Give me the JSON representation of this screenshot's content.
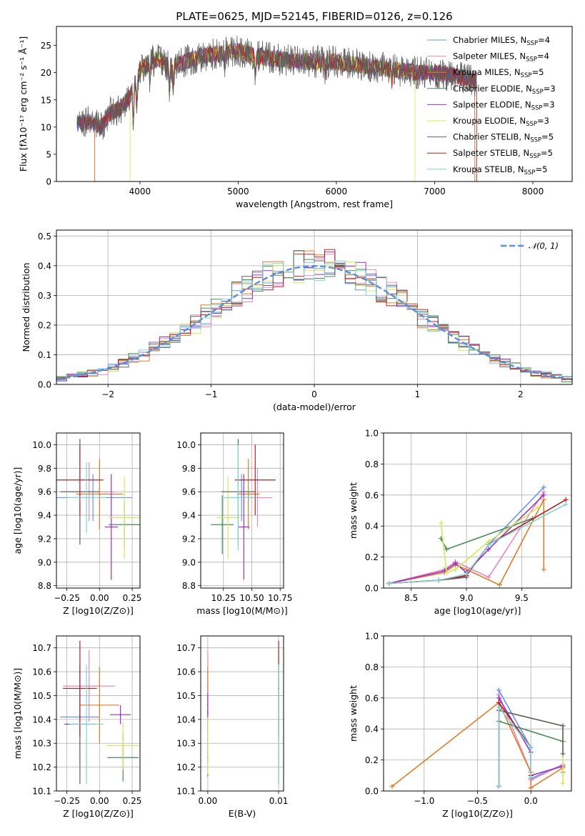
{
  "colors": {
    "chabrier_miles": "#6495ed",
    "salpeter_miles": "#e88aba",
    "kroupa_miles": "#e07b2a",
    "chabrier_elodie": "#4a8a5c",
    "salpeter_elodie": "#9a32c8",
    "kroupa_elodie": "#d4e85a",
    "chabrier_stelib": "#606060",
    "salpeter_stelib": "#b22222",
    "kroupa_stelib": "#7fd4d8",
    "normal": "#5b8dd9"
  },
  "chart_data": [
    {
      "id": "spectrum",
      "type": "line",
      "title": "PLATE=0625, MJD=52145, FIBERID=0126, z=0.126",
      "xlabel": "wavelength [Angstrom, rest frame]",
      "ylabel": "Flux [fλ10⁻¹⁷ erg cm⁻² s⁻¹ Å⁻¹]",
      "xlim": [
        3150,
        8400
      ],
      "ylim": [
        0,
        28.5
      ],
      "xticks": [
        4000,
        5000,
        6000,
        7000,
        8000
      ],
      "yticks": [
        0,
        5,
        10,
        15,
        20,
        25
      ],
      "legend_position": "top-right",
      "grid": false,
      "series": [
        {
          "name": "Chabrier MILES, N_SSP=4",
          "color_key": "chabrier_miles"
        },
        {
          "name": "Salpeter MILES, N_SSP=4",
          "color_key": "salpeter_miles"
        },
        {
          "name": "Kroupa MILES, N_SSP=5",
          "color_key": "kroupa_miles"
        },
        {
          "name": "Chabrier ELODIE, N_SSP=3",
          "color_key": "chabrier_elodie"
        },
        {
          "name": "Salpeter ELODIE, N_SSP=3",
          "color_key": "salpeter_elodie"
        },
        {
          "name": "Kroupa ELODIE, N_SSP=3",
          "color_key": "kroupa_elodie"
        },
        {
          "name": "Chabrier STELIB, N_SSP=5",
          "color_key": "chabrier_stelib"
        },
        {
          "name": "Salpeter STELIB, N_SSP=5",
          "color_key": "salpeter_stelib"
        },
        {
          "name": "Kroupa STELIB, N_SSP=5",
          "color_key": "kroupa_stelib"
        }
      ],
      "data_envelope": {
        "x": [
          3360,
          3500,
          3600,
          3700,
          3800,
          3900,
          4000,
          4100,
          4200,
          4300,
          4400,
          4600,
          4800,
          5000,
          5200,
          5400,
          5600,
          5800,
          6000,
          6200,
          6400,
          6600,
          6800,
          7000,
          7200,
          7300,
          7430
        ],
        "y": [
          10.5,
          11.0,
          10.0,
          12.5,
          13.5,
          15.5,
          20.5,
          22.0,
          22.5,
          21.0,
          21.5,
          23.0,
          23.5,
          24.0,
          23.0,
          22.5,
          22.0,
          22.0,
          22.0,
          21.5,
          21.0,
          20.5,
          20.0,
          20.0,
          19.5,
          19.0,
          18.5
        ]
      },
      "model_cutoffs": [
        {
          "series": "Chabrier MILES",
          "start": 3540,
          "end": 7410
        },
        {
          "series": "Salpeter MILES",
          "start": 3540,
          "end": 7410
        },
        {
          "series": "Kroupa MILES",
          "start": 3540,
          "end": 7410
        },
        {
          "series": "Kroupa ELODIE",
          "start": 3900,
          "end": 6800
        },
        {
          "series": "Salpeter STELIB",
          "start": 3360,
          "end": 7430
        }
      ]
    },
    {
      "id": "residuals",
      "type": "histogram",
      "xlabel": "(data-model)/error",
      "ylabel": "Normed distribution",
      "xlim": [
        -2.5,
        2.5
      ],
      "ylim": [
        0,
        0.52
      ],
      "xticks": [
        -2,
        -1,
        0,
        1,
        2
      ],
      "yticks": [
        0.0,
        0.1,
        0.2,
        0.3,
        0.4,
        0.5
      ],
      "grid": true,
      "legend_position": "top-right",
      "reference_curve": {
        "name": "𝒩(0, 1)",
        "mu": 0,
        "sigma": 1
      },
      "bin_width": 0.1
    },
    {
      "id": "age_vs_Z",
      "type": "errorbar",
      "xlabel": "Z [log10(Z/Z⊙)]",
      "ylabel": "age  [log10(age/yr)]",
      "xlim": [
        -0.33,
        0.31
      ],
      "ylim": [
        8.78,
        10.1
      ],
      "xticks": [
        -0.25,
        0.0,
        0.25
      ],
      "yticks": [
        8.8,
        9.0,
        9.2,
        9.4,
        9.6,
        9.8,
        10.0
      ],
      "grid": true,
      "points": [
        {
          "color_key": "chabrier_miles",
          "x": -0.05,
          "y": 9.55,
          "xerr": 0.3,
          "yerr": 0.2
        },
        {
          "color_key": "salpeter_miles",
          "x": -0.08,
          "y": 9.6,
          "xerr": 0.2,
          "yerr": 0.25
        },
        {
          "color_key": "kroupa_miles",
          "x": 0.0,
          "y": 9.58,
          "xerr": 0.18,
          "yerr": 0.3
        },
        {
          "color_key": "chabrier_elodie",
          "x": 0.19,
          "y": 9.32,
          "xerr": 0.12,
          "yerr": 0.2
        },
        {
          "color_key": "salpeter_elodie",
          "x": 0.09,
          "y": 9.3,
          "xerr": 0.05,
          "yerr": 0.45
        },
        {
          "color_key": "kroupa_elodie",
          "x": 0.19,
          "y": 9.38,
          "xerr": 0.12,
          "yerr": 0.35
        },
        {
          "color_key": "chabrier_stelib",
          "x": -0.15,
          "y": 9.6,
          "xerr": 0.15,
          "yerr": 0.45
        },
        {
          "color_key": "salpeter_stelib",
          "x": -0.15,
          "y": 9.7,
          "xerr": 0.18,
          "yerr": 0.3
        },
        {
          "color_key": "kroupa_stelib",
          "x": -0.1,
          "y": 9.55,
          "xerr": 0.15,
          "yerr": 0.3
        }
      ]
    },
    {
      "id": "age_vs_mass",
      "type": "errorbar",
      "xlabel": "mass [log10(M/M⊙)]",
      "ylabel": "",
      "xlim": [
        10.05,
        10.78
      ],
      "ylim": [
        8.78,
        10.1
      ],
      "xticks": [
        10.25,
        10.5,
        10.75
      ],
      "yticks": [
        8.8,
        9.0,
        9.2,
        9.4,
        9.6,
        9.8,
        10.0
      ],
      "grid": true,
      "points": [
        {
          "color_key": "chabrier_miles",
          "x": 10.41,
          "y": 9.55,
          "xerr": 0.1,
          "yerr": 0.2
        },
        {
          "color_key": "salpeter_miles",
          "x": 10.55,
          "y": 9.55,
          "xerr": 0.13,
          "yerr": 0.25
        },
        {
          "color_key": "kroupa_miles",
          "x": 10.47,
          "y": 9.58,
          "xerr": 0.1,
          "yerr": 0.3
        },
        {
          "color_key": "chabrier_elodie",
          "x": 10.24,
          "y": 9.32,
          "xerr": 0.1,
          "yerr": 0.25
        },
        {
          "color_key": "salpeter_elodie",
          "x": 10.43,
          "y": 9.3,
          "xerr": 0.05,
          "yerr": 0.45
        },
        {
          "color_key": "kroupa_elodie",
          "x": 10.29,
          "y": 9.38,
          "xerr": 0.1,
          "yerr": 0.35
        },
        {
          "color_key": "chabrier_stelib",
          "x": 10.38,
          "y": 9.6,
          "xerr": 0.15,
          "yerr": 0.45
        },
        {
          "color_key": "salpeter_stelib",
          "x": 10.53,
          "y": 9.7,
          "xerr": 0.18,
          "yerr": 0.3
        },
        {
          "color_key": "kroupa_stelib",
          "x": 10.38,
          "y": 9.55,
          "xerr": 0.15,
          "yerr": 0.45
        }
      ]
    },
    {
      "id": "massweight_vs_age",
      "type": "line",
      "xlabel": "age  [log10(age/yr)]",
      "ylabel": "mass weight",
      "xlim": [
        8.25,
        9.95
      ],
      "ylim": [
        0.0,
        1.0
      ],
      "xticks": [
        8.5,
        9.0,
        9.5
      ],
      "yticks": [
        0.0,
        0.2,
        0.4,
        0.6,
        0.8,
        1.0
      ],
      "grid": true,
      "series": [
        {
          "color_key": "chabrier_miles",
          "x": [
            8.3,
            8.75,
            9.0,
            9.2,
            9.7
          ],
          "y": [
            0.03,
            0.05,
            0.08,
            0.28,
            0.65
          ]
        },
        {
          "color_key": "salpeter_miles",
          "x": [
            8.3,
            8.8,
            8.9,
            9.2,
            9.7
          ],
          "y": [
            0.03,
            0.12,
            0.17,
            0.07,
            0.62
          ]
        },
        {
          "color_key": "kroupa_miles",
          "x": [
            8.3,
            8.8,
            8.9,
            9.0,
            9.3,
            9.7,
            9.7
          ],
          "y": [
            0.03,
            0.1,
            0.15,
            0.12,
            0.02,
            0.57,
            0.12
          ]
        },
        {
          "color_key": "chabrier_elodie",
          "x": [
            8.77,
            8.82,
            9.6
          ],
          "y": [
            0.32,
            0.25,
            0.45
          ]
        },
        {
          "color_key": "salpeter_elodie",
          "x": [
            8.3,
            8.8,
            8.9,
            9.0,
            9.2,
            9.7
          ],
          "y": [
            0.03,
            0.11,
            0.16,
            0.1,
            0.25,
            0.6
          ]
        },
        {
          "color_key": "kroupa_elodie",
          "x": [
            8.77,
            8.82,
            8.9,
            9.2,
            9.65
          ],
          "y": [
            0.42,
            0.1,
            0.12,
            0.3,
            0.52
          ]
        },
        {
          "color_key": "chabrier_stelib",
          "x": [
            8.3,
            8.75,
            9.0
          ],
          "y": [
            0.03,
            0.05,
            0.07
          ]
        },
        {
          "color_key": "salpeter_stelib",
          "x": [
            8.3,
            8.75,
            9.0,
            9.2,
            9.9
          ],
          "y": [
            0.03,
            0.05,
            0.08,
            0.28,
            0.57
          ]
        },
        {
          "color_key": "kroupa_stelib",
          "x": [
            8.3,
            8.75,
            9.0,
            9.2,
            9.9
          ],
          "y": [
            0.03,
            0.05,
            0.09,
            0.28,
            0.54
          ]
        }
      ]
    },
    {
      "id": "mass_vs_Z",
      "type": "errorbar",
      "xlabel": "Z [log10(Z/Z⊙)]",
      "ylabel": "mass [log10(M/M⊙)]",
      "xlim": [
        -0.33,
        0.31
      ],
      "ylim": [
        10.1,
        10.75
      ],
      "xticks": [
        -0.25,
        0.0,
        0.25
      ],
      "yticks": [
        10.1,
        10.2,
        10.3,
        10.4,
        10.5,
        10.6,
        10.7
      ],
      "grid": true,
      "points": [
        {
          "color_key": "chabrier_miles",
          "x": -0.15,
          "y": 10.41,
          "xerr": 0.15,
          "yerr": 0.2
        },
        {
          "color_key": "salpeter_miles",
          "x": -0.08,
          "y": 10.54,
          "xerr": 0.2,
          "yerr": 0.15
        },
        {
          "color_key": "kroupa_miles",
          "x": 0.0,
          "y": 10.46,
          "xerr": 0.15,
          "yerr": 0.16
        },
        {
          "color_key": "chabrier_elodie",
          "x": 0.18,
          "y": 10.24,
          "xerr": 0.12,
          "yerr": 0.1
        },
        {
          "color_key": "salpeter_elodie",
          "x": 0.16,
          "y": 10.42,
          "xerr": 0.08,
          "yerr": 0.04
        },
        {
          "color_key": "kroupa_elodie",
          "x": 0.18,
          "y": 10.29,
          "xerr": 0.13,
          "yerr": 0.1
        },
        {
          "color_key": "chabrier_stelib",
          "x": -0.15,
          "y": 10.38,
          "xerr": 0.12,
          "yerr": 0.25
        },
        {
          "color_key": "salpeter_stelib",
          "x": -0.15,
          "y": 10.53,
          "xerr": 0.13,
          "yerr": 0.2
        },
        {
          "color_key": "kroupa_stelib",
          "x": -0.1,
          "y": 10.38,
          "xerr": 0.13,
          "yerr": 0.25
        }
      ]
    },
    {
      "id": "mass_vs_ebv",
      "type": "errorbar",
      "xlabel": "E(B-V)",
      "ylabel": "",
      "xlim": [
        -0.001,
        0.0107
      ],
      "ylim": [
        10.1,
        10.75
      ],
      "xticks": [
        0.0,
        0.01
      ],
      "yticks": [
        10.1,
        10.2,
        10.3,
        10.4,
        10.5,
        10.6,
        10.7
      ],
      "grid": true,
      "points": [
        {
          "color_key": "chabrier_miles",
          "x": 0.0,
          "y": 10.41,
          "yerr": 0.2
        },
        {
          "color_key": "salpeter_miles",
          "x": 0.0,
          "y": 10.54,
          "yerr": 0.15
        },
        {
          "color_key": "kroupa_miles",
          "x": 0.0,
          "y": 10.46,
          "yerr": 0.16
        },
        {
          "color_key": "chabrier_elodie",
          "x": 0.0,
          "y": 10.24,
          "yerr": 0.08
        },
        {
          "color_key": "salpeter_elodie",
          "x": 0.0,
          "y": 10.43,
          "yerr": 0.08
        },
        {
          "color_key": "kroupa_elodie",
          "x": 0.0,
          "y": 10.29,
          "yerr": 0.12
        },
        {
          "color_key": "chabrier_stelib",
          "x": 0.01,
          "y": 10.38,
          "yerr": 0.25
        },
        {
          "color_key": "salpeter_stelib",
          "x": 0.01,
          "y": 10.53,
          "yerr": 0.2
        },
        {
          "color_key": "kroupa_stelib",
          "x": 0.01,
          "y": 10.38,
          "yerr": 0.25
        }
      ]
    },
    {
      "id": "massweight_vs_Z",
      "type": "line",
      "xlabel": "Z [log10(Z/Z⊙)]",
      "ylabel": "mass weight",
      "xlim": [
        -1.38,
        0.38
      ],
      "ylim": [
        0.0,
        1.0
      ],
      "xticks": [
        -1.0,
        -0.5,
        0.0
      ],
      "yticks": [
        0.0,
        0.2,
        0.4,
        0.6,
        0.8,
        1.0
      ],
      "grid": true,
      "series": [
        {
          "color_key": "chabrier_miles",
          "x": [
            -0.3,
            -0.3,
            0.0,
            0.0,
            0.3
          ],
          "y": [
            0.03,
            0.65,
            0.28,
            0.08,
            0.17
          ]
        },
        {
          "color_key": "salpeter_miles",
          "x": [
            -0.3,
            -0.3,
            0.0,
            0.0,
            0.3
          ],
          "y": [
            0.03,
            0.62,
            0.12,
            0.07,
            0.17
          ]
        },
        {
          "color_key": "kroupa_miles",
          "x": [
            -1.3,
            -0.3,
            0.0,
            0.0,
            0.3,
            0.3
          ],
          "y": [
            0.03,
            0.57,
            0.12,
            0.02,
            0.15,
            0.12
          ]
        },
        {
          "color_key": "chabrier_elodie",
          "x": [
            -0.3,
            0.3
          ],
          "y": [
            0.45,
            0.32
          ]
        },
        {
          "color_key": "salpeter_elodie",
          "x": [
            -0.3,
            -0.3,
            0.0,
            0.0,
            0.3
          ],
          "y": [
            0.03,
            0.6,
            0.25,
            0.1,
            0.16
          ]
        },
        {
          "color_key": "kroupa_elodie",
          "x": [
            -0.3,
            0.3,
            0.3
          ],
          "y": [
            0.52,
            0.42,
            0.05
          ]
        },
        {
          "color_key": "chabrier_stelib",
          "x": [
            -0.3,
            0.3,
            0.3
          ],
          "y": [
            0.52,
            0.42,
            0.24
          ]
        },
        {
          "color_key": "salpeter_stelib",
          "x": [
            -0.3,
            -0.3,
            0.0,
            0.0
          ],
          "y": [
            0.03,
            0.57,
            0.28,
            0.1
          ]
        },
        {
          "color_key": "kroupa_stelib",
          "x": [
            -0.3,
            -0.3,
            0.0,
            0.0
          ],
          "y": [
            0.03,
            0.54,
            0.28,
            0.09
          ]
        }
      ]
    }
  ]
}
